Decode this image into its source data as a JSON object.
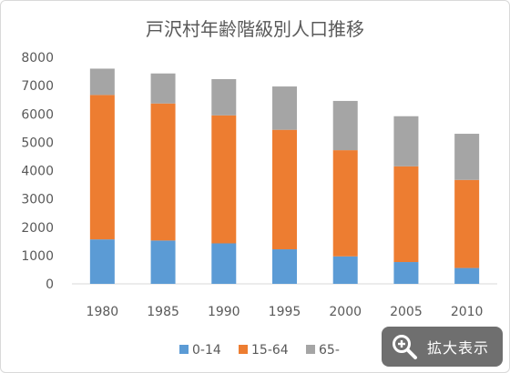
{
  "chart_data": {
    "type": "bar",
    "stacked": true,
    "title": "戸沢村年齢階級別人口推移",
    "categories": [
      "1980",
      "1985",
      "1990",
      "1995",
      "2000",
      "2005",
      "2010"
    ],
    "series": [
      {
        "name": "0-14",
        "values": [
          1570,
          1530,
          1430,
          1220,
          970,
          770,
          560
        ]
      },
      {
        "name": "15-64",
        "values": [
          5100,
          4840,
          4520,
          4220,
          3750,
          3380,
          3110
        ]
      },
      {
        "name": "65-",
        "values": [
          930,
          1060,
          1280,
          1530,
          1740,
          1770,
          1630
        ]
      }
    ],
    "yticks": [
      "0",
      "1000",
      "2000",
      "3000",
      "4000",
      "5000",
      "6000",
      "7000",
      "8000"
    ],
    "ylim": [
      0,
      8000
    ],
    "grid": false,
    "legend_position": "bottom"
  },
  "colors": {
    "0-14": "#5b9bd5",
    "15-64": "#ed7d31",
    "65-": "#a5a5a5"
  },
  "zoom_button": {
    "label": "拡大表示",
    "icon": "magnifier-plus-icon"
  }
}
